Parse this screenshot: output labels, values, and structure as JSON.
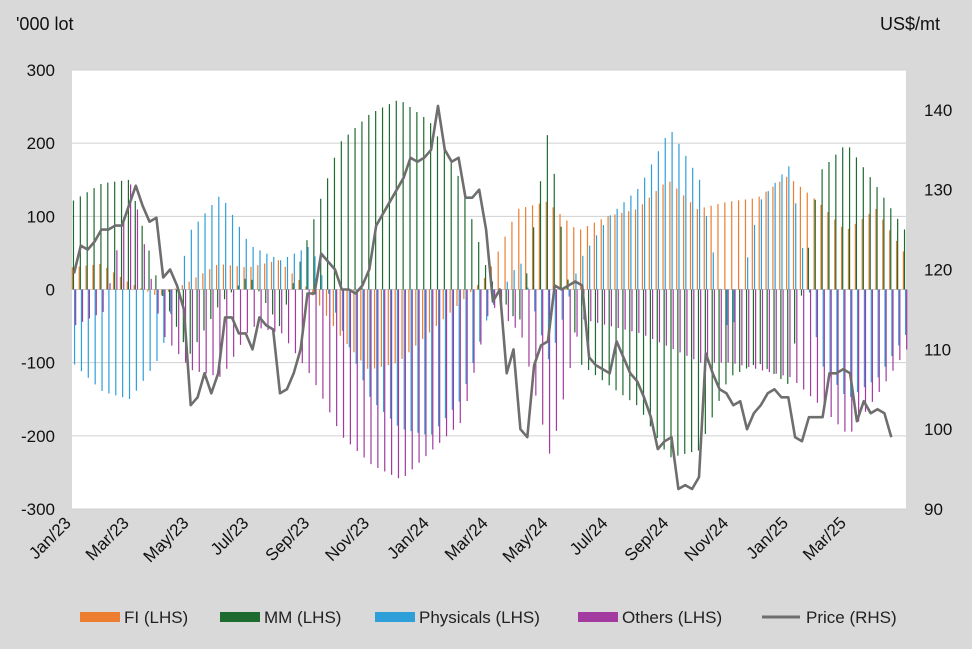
{
  "chart_data": {
    "type": "bar",
    "subtype": "mirrored positioning bars with price line overlay",
    "left_unit": "'000 lot",
    "right_unit": "US$/mt",
    "ylim_left": [
      -300,
      300
    ],
    "ylim_right": [
      90,
      145
    ],
    "yticks_left": [
      "300",
      "200",
      "100",
      "0",
      "-100",
      "-200",
      "-300"
    ],
    "yticks_right": [
      "140",
      "130",
      "120",
      "110",
      "100",
      "90"
    ],
    "yticks_left_values": [
      300,
      200,
      100,
      0,
      -100,
      -200,
      -300
    ],
    "yticks_right_values": [
      140,
      130,
      120,
      110,
      100,
      90
    ],
    "x_start": "2023-01-01",
    "x_end": "2025-04-30",
    "x_ticks": [
      {
        "label": "Jan/23",
        "date": "2023-01-01"
      },
      {
        "label": "Mar/23",
        "date": "2023-03-01"
      },
      {
        "label": "May/23",
        "date": "2023-05-01"
      },
      {
        "label": "Jul/23",
        "date": "2023-07-01"
      },
      {
        "label": "Sep/23",
        "date": "2023-09-01"
      },
      {
        "label": "Nov/23",
        "date": "2023-11-01"
      },
      {
        "label": "Jan/24",
        "date": "2024-01-01"
      },
      {
        "label": "Mar/24",
        "date": "2024-03-01"
      },
      {
        "label": "May/24",
        "date": "2024-05-01"
      },
      {
        "label": "Jul/24",
        "date": "2024-07-01"
      },
      {
        "label": "Sep/24",
        "date": "2024-09-01"
      },
      {
        "label": "Nov/24",
        "date": "2024-11-01"
      },
      {
        "label": "Jan/25",
        "date": "2025-01-01"
      },
      {
        "label": "Mar/25",
        "date": "2025-03-01"
      }
    ],
    "grid": true,
    "legend_position": "bottom",
    "series": [
      {
        "name": "FI (LHS)",
        "color": "#ed7d31",
        "axis": "left",
        "kind": "bar",
        "keyframes": [
          [
            "2023-01-01",
            30
          ],
          [
            "2023-02-01",
            35
          ],
          [
            "2023-03-01",
            10
          ],
          [
            "2023-04-01",
            -10
          ],
          [
            "2023-05-01",
            10
          ],
          [
            "2023-06-01",
            35
          ],
          [
            "2023-07-01",
            30
          ],
          [
            "2023-08-01",
            40
          ],
          [
            "2023-09-01",
            0
          ],
          [
            "2023-10-01",
            -60
          ],
          [
            "2023-11-01",
            -110
          ],
          [
            "2023-12-01",
            -100
          ],
          [
            "2024-01-01",
            -60
          ],
          [
            "2024-02-01",
            -20
          ],
          [
            "2024-03-01",
            20
          ],
          [
            "2024-04-01",
            110
          ],
          [
            "2024-05-01",
            120
          ],
          [
            "2024-06-01",
            80
          ],
          [
            "2024-07-01",
            100
          ],
          [
            "2024-08-01",
            110
          ],
          [
            "2024-09-01",
            150
          ],
          [
            "2024-10-01",
            110
          ],
          [
            "2024-11-01",
            120
          ],
          [
            "2024-12-01",
            125
          ],
          [
            "2025-01-01",
            155
          ],
          [
            "2025-02-01",
            120
          ],
          [
            "2025-03-01",
            80
          ],
          [
            "2025-04-01",
            110
          ],
          [
            "2025-04-30",
            50
          ]
        ]
      },
      {
        "name": "MM (LHS)",
        "color": "#1e6b30",
        "axis": "left",
        "kind": "bar",
        "keyframes": [
          [
            "2023-01-01",
            120
          ],
          [
            "2023-02-01",
            145
          ],
          [
            "2023-03-01",
            150
          ],
          [
            "2023-04-01",
            0
          ],
          [
            "2023-05-01",
            -90
          ],
          [
            "2023-06-01",
            -20
          ],
          [
            "2023-07-01",
            20
          ],
          [
            "2023-08-01",
            -50
          ],
          [
            "2023-09-01",
            80
          ],
          [
            "2023-10-01",
            200
          ],
          [
            "2023-11-01",
            240
          ],
          [
            "2023-12-01",
            260
          ],
          [
            "2024-01-01",
            230
          ],
          [
            "2024-02-01",
            150
          ],
          [
            "2024-03-01",
            20
          ],
          [
            "2024-04-01",
            -50
          ],
          [
            "2024-05-01",
            220
          ],
          [
            "2024-06-01",
            -100
          ],
          [
            "2024-07-01",
            -130
          ],
          [
            "2024-08-01",
            -160
          ],
          [
            "2024-09-01",
            -230
          ],
          [
            "2024-10-01",
            -220
          ],
          [
            "2024-11-01",
            -120
          ],
          [
            "2024-12-01",
            -100
          ],
          [
            "2025-01-01",
            -130
          ],
          [
            "2025-02-01",
            160
          ],
          [
            "2025-03-01",
            200
          ],
          [
            "2025-04-01",
            140
          ],
          [
            "2025-04-30",
            80
          ]
        ]
      },
      {
        "name": "Physicals (LHS)",
        "color": "#2e9fd9",
        "axis": "left",
        "kind": "bar",
        "keyframes": [
          [
            "2023-01-01",
            -100
          ],
          [
            "2023-02-01",
            -140
          ],
          [
            "2023-03-01",
            -150
          ],
          [
            "2023-04-01",
            -90
          ],
          [
            "2023-05-01",
            80
          ],
          [
            "2023-06-01",
            130
          ],
          [
            "2023-07-01",
            60
          ],
          [
            "2023-08-01",
            40
          ],
          [
            "2023-09-01",
            60
          ],
          [
            "2023-10-01",
            -50
          ],
          [
            "2023-11-01",
            -150
          ],
          [
            "2023-12-01",
            -190
          ],
          [
            "2024-01-01",
            -200
          ],
          [
            "2024-02-01",
            -150
          ],
          [
            "2024-03-01",
            -30
          ],
          [
            "2024-04-01",
            40
          ],
          [
            "2024-05-01",
            -100
          ],
          [
            "2024-06-01",
            40
          ],
          [
            "2024-07-01",
            100
          ],
          [
            "2024-08-01",
            140
          ],
          [
            "2024-09-01",
            220
          ],
          [
            "2024-10-01",
            150
          ],
          [
            "2024-11-01",
            -70
          ],
          [
            "2024-12-01",
            120
          ],
          [
            "2025-01-01",
            170
          ],
          [
            "2025-02-01",
            -100
          ],
          [
            "2025-03-01",
            -150
          ],
          [
            "2025-04-01",
            -120
          ],
          [
            "2025-04-30",
            -60
          ]
        ]
      },
      {
        "name": "Others (LHS)",
        "color": "#a23aa0",
        "axis": "left",
        "kind": "bar",
        "keyframes": [
          [
            "2023-01-01",
            -50
          ],
          [
            "2023-02-01",
            -30
          ],
          [
            "2023-03-01",
            150
          ],
          [
            "2023-04-01",
            -60
          ],
          [
            "2023-05-01",
            -110
          ],
          [
            "2023-06-01",
            -120
          ],
          [
            "2023-07-01",
            -50
          ],
          [
            "2023-08-01",
            -60
          ],
          [
            "2023-09-01",
            -120
          ],
          [
            "2023-10-01",
            -200
          ],
          [
            "2023-11-01",
            -240
          ],
          [
            "2023-12-01",
            -260
          ],
          [
            "2024-01-01",
            -220
          ],
          [
            "2024-02-01",
            -180
          ],
          [
            "2024-03-01",
            -20
          ],
          [
            "2024-04-01",
            -60
          ],
          [
            "2024-05-01",
            -230
          ],
          [
            "2024-06-01",
            -40
          ],
          [
            "2024-07-01",
            -50
          ],
          [
            "2024-08-01",
            -60
          ],
          [
            "2024-09-01",
            -80
          ],
          [
            "2024-10-01",
            -100
          ],
          [
            "2024-11-01",
            -100
          ],
          [
            "2024-12-01",
            -110
          ],
          [
            "2025-01-01",
            -120
          ],
          [
            "2025-02-01",
            -160
          ],
          [
            "2025-03-01",
            -200
          ],
          [
            "2025-04-01",
            -140
          ],
          [
            "2025-04-30",
            -80
          ]
        ]
      },
      {
        "name": "Price (RHS)",
        "color": "#6e6e6e",
        "axis": "right",
        "kind": "line",
        "points": [
          [
            "2023-01-03",
            119.5
          ],
          [
            "2023-01-10",
            123
          ],
          [
            "2023-01-17",
            122.5
          ],
          [
            "2023-01-24",
            123.5
          ],
          [
            "2023-01-31",
            125
          ],
          [
            "2023-02-07",
            125
          ],
          [
            "2023-02-14",
            125.5
          ],
          [
            "2023-02-21",
            125.5
          ],
          [
            "2023-02-28",
            128
          ],
          [
            "2023-03-07",
            130.5
          ],
          [
            "2023-03-14",
            128
          ],
          [
            "2023-03-21",
            126
          ],
          [
            "2023-03-28",
            126.5
          ],
          [
            "2023-04-04",
            119
          ],
          [
            "2023-04-11",
            120
          ],
          [
            "2023-04-18",
            118
          ],
          [
            "2023-04-25",
            115
          ],
          [
            "2023-05-02",
            103
          ],
          [
            "2023-05-09",
            104
          ],
          [
            "2023-05-16",
            107
          ],
          [
            "2023-05-23",
            104.5
          ],
          [
            "2023-05-30",
            107
          ],
          [
            "2023-06-06",
            114
          ],
          [
            "2023-06-13",
            114
          ],
          [
            "2023-06-20",
            112
          ],
          [
            "2023-06-27",
            112
          ],
          [
            "2023-07-04",
            110
          ],
          [
            "2023-07-11",
            114
          ],
          [
            "2023-07-18",
            113
          ],
          [
            "2023-07-25",
            112.5
          ],
          [
            "2023-08-01",
            104.5
          ],
          [
            "2023-08-08",
            105
          ],
          [
            "2023-08-15",
            107
          ],
          [
            "2023-08-22",
            110
          ],
          [
            "2023-08-29",
            117
          ],
          [
            "2023-09-05",
            117
          ],
          [
            "2023-09-12",
            122
          ],
          [
            "2023-09-19",
            121
          ],
          [
            "2023-09-26",
            120
          ],
          [
            "2023-10-03",
            117.5
          ],
          [
            "2023-10-10",
            117.5
          ],
          [
            "2023-10-17",
            117
          ],
          [
            "2023-10-24",
            118
          ],
          [
            "2023-10-31",
            120
          ],
          [
            "2023-11-07",
            125.5
          ],
          [
            "2023-11-14",
            127
          ],
          [
            "2023-11-21",
            128.5
          ],
          [
            "2023-11-28",
            130
          ],
          [
            "2023-12-05",
            131.5
          ],
          [
            "2023-12-12",
            134
          ],
          [
            "2023-12-19",
            133.5
          ],
          [
            "2023-12-26",
            134
          ],
          [
            "2024-01-02",
            135
          ],
          [
            "2024-01-09",
            140.5
          ],
          [
            "2024-01-16",
            135
          ],
          [
            "2024-01-23",
            133.5
          ],
          [
            "2024-01-30",
            134
          ],
          [
            "2024-02-06",
            129
          ],
          [
            "2024-02-13",
            129
          ],
          [
            "2024-02-20",
            130
          ],
          [
            "2024-02-27",
            125
          ],
          [
            "2024-03-05",
            116
          ],
          [
            "2024-03-12",
            117.5
          ],
          [
            "2024-03-19",
            107
          ],
          [
            "2024-03-26",
            110
          ],
          [
            "2024-04-02",
            100
          ],
          [
            "2024-04-09",
            99
          ],
          [
            "2024-04-16",
            108
          ],
          [
            "2024-04-23",
            110.5
          ],
          [
            "2024-04-30",
            111
          ],
          [
            "2024-05-07",
            118
          ],
          [
            "2024-05-14",
            117.5
          ],
          [
            "2024-05-21",
            118
          ],
          [
            "2024-05-28",
            118.5
          ],
          [
            "2024-06-04",
            118
          ],
          [
            "2024-06-11",
            109
          ],
          [
            "2024-06-18",
            108
          ],
          [
            "2024-06-25",
            107.5
          ],
          [
            "2024-07-02",
            107
          ],
          [
            "2024-07-09",
            111
          ],
          [
            "2024-07-16",
            109
          ],
          [
            "2024-07-23",
            107
          ],
          [
            "2024-07-30",
            106
          ],
          [
            "2024-08-06",
            104
          ],
          [
            "2024-08-13",
            101.5
          ],
          [
            "2024-08-20",
            97.5
          ],
          [
            "2024-08-27",
            98.5
          ],
          [
            "2024-09-03",
            99
          ],
          [
            "2024-09-10",
            92.5
          ],
          [
            "2024-09-17",
            93
          ],
          [
            "2024-09-24",
            92.5
          ],
          [
            "2024-10-01",
            94
          ],
          [
            "2024-10-08",
            109.5
          ],
          [
            "2024-10-15",
            107
          ],
          [
            "2024-10-22",
            105
          ],
          [
            "2024-10-29",
            104.5
          ],
          [
            "2024-11-05",
            103
          ],
          [
            "2024-11-12",
            103.5
          ],
          [
            "2024-11-19",
            100
          ],
          [
            "2024-11-26",
            102
          ],
          [
            "2024-12-03",
            103
          ],
          [
            "2024-12-10",
            104.5
          ],
          [
            "2024-12-17",
            105
          ],
          [
            "2024-12-24",
            104
          ],
          [
            "2024-12-31",
            104
          ],
          [
            "2025-01-07",
            99
          ],
          [
            "2025-01-14",
            98.5
          ],
          [
            "2025-01-21",
            101.5
          ],
          [
            "2025-01-28",
            101.5
          ],
          [
            "2025-02-04",
            101.5
          ],
          [
            "2025-02-11",
            107
          ],
          [
            "2025-02-18",
            107
          ],
          [
            "2025-02-25",
            107.5
          ],
          [
            "2025-03-04",
            107
          ],
          [
            "2025-03-11",
            101
          ],
          [
            "2025-03-18",
            103.5
          ],
          [
            "2025-03-25",
            102
          ],
          [
            "2025-04-01",
            102.5
          ],
          [
            "2025-04-08",
            102
          ],
          [
            "2025-04-15",
            99
          ]
        ]
      }
    ]
  }
}
